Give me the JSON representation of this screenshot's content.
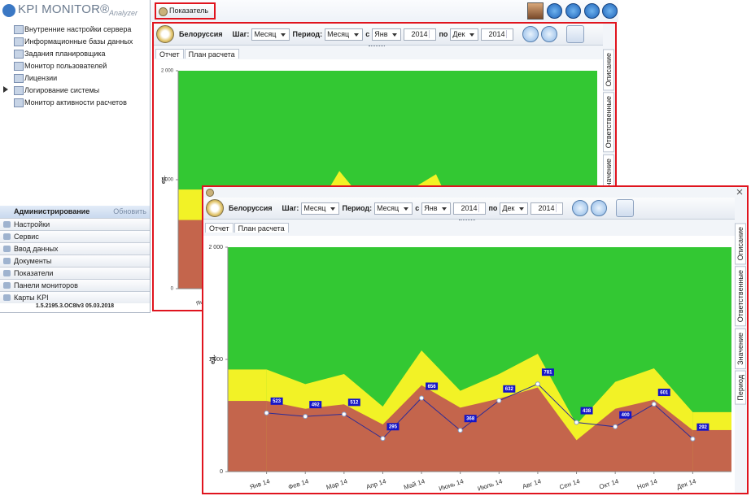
{
  "app": {
    "logo": "KPI MONITOR®",
    "logo_sub": "Analyzer",
    "tab": "Показатель"
  },
  "tree": [
    "Внутренние настройки сервера",
    "Информационные базы данных",
    "Задания планировщика",
    "Монитор пользователей",
    "Лицензии",
    "Логирование системы",
    "Монитор активности расчетов"
  ],
  "nav": {
    "header": "Администрирование",
    "refresh": "Обновить",
    "items": [
      "Настройки",
      "Сервис",
      "Ввод данных",
      "Документы",
      "Показатели",
      "Панели мониторов",
      "Карты KPI"
    ],
    "version": "1.5.2195.3.OC8Iv3  05.03.2018"
  },
  "toolbar": {
    "region": "Белоруссия",
    "step_label": "Шаг:",
    "step": "Месяц",
    "period_label": "Период:",
    "period": "Месяц",
    "from_label": "с",
    "from_month": "Янв",
    "from_year": "2014",
    "to_label": "по",
    "to_month": "Дек",
    "to_year": "2014"
  },
  "tabs": [
    "Отчет",
    "План расчета"
  ],
  "side_tabs": [
    "Описание",
    "Ответственные",
    "Значение",
    "Период"
  ],
  "chart_data": {
    "type": "line",
    "y_label": "ед.",
    "categories": [
      "Янв 14",
      "Фев 14",
      "Мар 14",
      "Апр 14",
      "Май 14",
      "Июнь 14",
      "Июль 14",
      "Авг 14",
      "Сен 14",
      "Окт 14",
      "Ноя 14",
      "Дек 14"
    ],
    "ylim": [
      0,
      2000
    ],
    "yticks": [
      0,
      {
        "value": 1000,
        "label": "1 000"
      },
      {
        "value": 2000,
        "label": "2 000"
      }
    ],
    "plot_color": "#33c833",
    "zones": [
      {
        "color": "#f2f226",
        "values": [
          910,
          780,
          870,
          580,
          1080,
          720,
          870,
          1050,
          420,
          800,
          920,
          530
        ]
      },
      {
        "color": "#c4654c",
        "values": [
          630,
          560,
          600,
          420,
          770,
          570,
          650,
          750,
          280,
          560,
          640,
          370
        ]
      }
    ],
    "series": [
      {
        "color": "#2c2c96",
        "label_color": "#1515c8",
        "values": [
          523,
          492,
          512,
          295,
          656,
          368,
          632,
          781,
          438,
          400,
          601,
          292
        ]
      }
    ]
  }
}
